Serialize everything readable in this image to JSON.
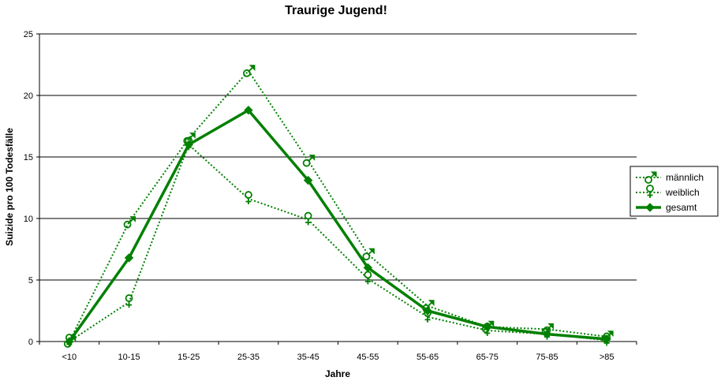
{
  "chart_data": {
    "type": "line",
    "title": "Traurige Jugend!",
    "xlabel": "Jahre",
    "ylabel": "Suizide pro 100 Todesfälle",
    "categories": [
      "<10",
      "10-15",
      "15-25",
      "25-35",
      "35-45",
      "45-55",
      "55-65",
      "65-75",
      "75-85",
      ">85"
    ],
    "ylim": [
      0,
      25
    ],
    "yticks": [
      "0",
      "5",
      "10",
      "15",
      "20",
      "25"
    ],
    "grid": true,
    "legend_position": "right",
    "series": [
      {
        "name": "männlich",
        "values": [
          0,
          9.7,
          16.5,
          22,
          14.7,
          7.1,
          2.9,
          1.2,
          1.0,
          0.4
        ],
        "style": "dotted",
        "marker": "male-symbol",
        "color": "#008000"
      },
      {
        "name": "weiblich",
        "values": [
          0,
          3.2,
          16,
          11.6,
          9.9,
          5.1,
          2.0,
          0.9,
          0.6,
          0.1
        ],
        "style": "dotted",
        "marker": "female-symbol",
        "color": "#008000"
      },
      {
        "name": "gesamt",
        "values": [
          0,
          6.8,
          16.0,
          18.8,
          13.1,
          6.0,
          2.5,
          1.2,
          0.6,
          0.2
        ],
        "style": "solid-thick",
        "marker": "diamond",
        "color": "#008000"
      }
    ]
  }
}
